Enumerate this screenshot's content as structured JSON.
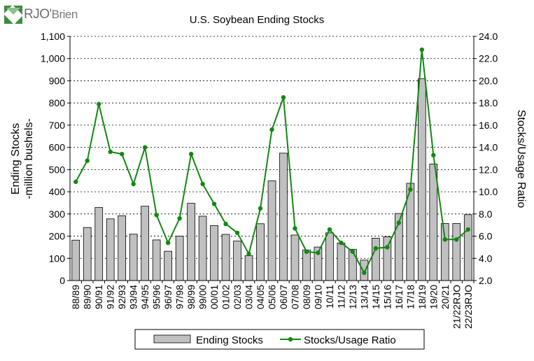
{
  "logo": {
    "text_main": "RJO",
    "text_apos": "'",
    "text_rest": "Brien"
  },
  "chart_data": {
    "type": "bar",
    "title": "U.S. Soybean Ending Stocks",
    "categories": [
      "88/89",
      "89/90",
      "90/91",
      "91/92",
      "92/93",
      "93/94",
      "94/95",
      "95/96",
      "96/97",
      "97/98",
      "98/99",
      "99/00",
      "00/01",
      "01/02",
      "02/03",
      "03/04",
      "04/05",
      "05/06",
      "06/07",
      "07/08",
      "08/09",
      "09/10",
      "10/11",
      "11/12",
      "12/13",
      "13/14",
      "14/15",
      "15/16",
      "16/17",
      "17/18",
      "18/19",
      "19/20",
      "20/21",
      "21/22RJO",
      "22/23RJO"
    ],
    "series": [
      {
        "name": "Ending Stocks",
        "type": "bar",
        "axis": "left",
        "color": "#c0c0c0",
        "values": [
          182,
          239,
          329,
          278,
          292,
          209,
          335,
          183,
          132,
          200,
          348,
          290,
          248,
          208,
          178,
          112,
          256,
          449,
          574,
          205,
          138,
          151,
          215,
          169,
          141,
          92,
          191,
          197,
          302,
          438,
          909,
          525,
          257,
          257,
          297
        ]
      },
      {
        "name": "Stocks/Usage Ratio",
        "type": "line",
        "axis": "right",
        "color": "#118811",
        "values": [
          10.9,
          12.8,
          17.9,
          13.6,
          13.4,
          10.7,
          14.0,
          7.9,
          5.4,
          7.6,
          13.4,
          10.7,
          8.9,
          7.1,
          6.3,
          4.4,
          8.5,
          15.6,
          18.5,
          6.7,
          4.6,
          4.5,
          6.6,
          5.4,
          4.6,
          2.7,
          4.9,
          5.0,
          7.2,
          10.2,
          22.8,
          13.3,
          5.7,
          5.7,
          6.6
        ]
      }
    ],
    "ylabel_left_line1": "Ending Stocks",
    "ylabel_left_line2": "-million bushels-",
    "ylabel_right": "Stocks/Usage Ratio",
    "ylim_left": [
      0,
      1100
    ],
    "yticks_left": [
      "0",
      "100",
      "200",
      "300",
      "400",
      "500",
      "600",
      "700",
      "800",
      "900",
      "1,000",
      "1,100"
    ],
    "ylim_right": [
      2.0,
      24.0
    ],
    "yticks_right": [
      "2.0",
      "4.0",
      "6.0",
      "8.0",
      "10.0",
      "12.0",
      "14.0",
      "16.0",
      "18.0",
      "20.0",
      "22.0",
      "24.0"
    ],
    "grid": "horizontal dashed",
    "legend_position": "bottom",
    "legend": [
      "Ending Stocks",
      "Stocks/Usage Ratio"
    ]
  }
}
